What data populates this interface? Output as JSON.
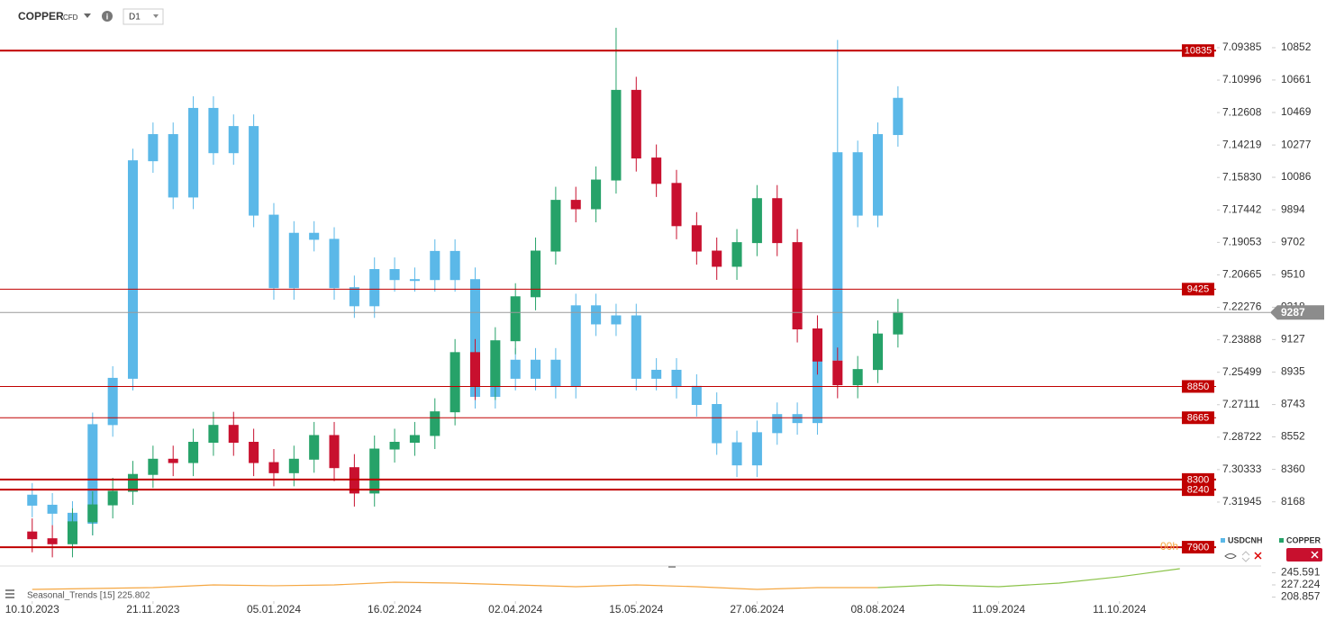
{
  "header": {
    "symbol": "COPPER",
    "instrument": "CFD",
    "timeframe": "D1"
  },
  "chart_data": {
    "type": "candlestick",
    "x": [
      0,
      5,
      10,
      15,
      20,
      25,
      30,
      35,
      40,
      45,
      50,
      55,
      60,
      65,
      70,
      75,
      80,
      85,
      90,
      95,
      100,
      105,
      110,
      115,
      120,
      125,
      130,
      135,
      140,
      145,
      150,
      155,
      160,
      165,
      170,
      175,
      180,
      185,
      190,
      195,
      200,
      205,
      210,
      215
    ],
    "xlim": [
      -8,
      294
    ],
    "xticks": [
      {
        "value": 0,
        "label": "10.10.2023"
      },
      {
        "value": 30,
        "label": "21.11.2023"
      },
      {
        "value": 60,
        "label": "05.01.2024"
      },
      {
        "value": 90,
        "label": "16.02.2024"
      },
      {
        "value": 120,
        "label": "02.04.2024"
      },
      {
        "value": 150,
        "label": "15.05.2024"
      },
      {
        "value": 180,
        "label": "27.06.2024"
      },
      {
        "value": 210,
        "label": "08.08.2024"
      },
      {
        "value": 240,
        "label": "11.09.2024"
      },
      {
        "value": 270,
        "label": "11.10.2024"
      }
    ],
    "ylim": [
      7810,
      10985
    ],
    "yticks": [
      10852,
      10661,
      10469,
      10277,
      10086,
      9894,
      9702,
      9510,
      9318,
      9127,
      8935,
      8743,
      8552,
      8360,
      8168
    ],
    "y2lim": [
      7.0827,
      7.3494
    ],
    "y2_inverted": true,
    "y2ticks": [
      7.09385,
      7.10996,
      7.12608,
      7.14219,
      {
        "value": 7.1583,
        "label": "7.15830"
      },
      7.17442,
      7.19053,
      7.20665,
      7.22276,
      7.23888,
      7.25499,
      7.27111,
      7.28722,
      7.30333,
      7.31945
    ],
    "series": [
      {
        "name": "USDCNH",
        "axis": "y2",
        "color": "#5bb8e8",
        "open": [
          7.316,
          7.321,
          7.325,
          7.33,
          7.281,
          7.258,
          7.15,
          7.137,
          7.168,
          7.124,
          7.146,
          7.133,
          7.177,
          7.213,
          7.186,
          7.189,
          7.213,
          7.222,
          7.204,
          7.209,
          7.209,
          7.195,
          7.209,
          7.267,
          7.249,
          7.258,
          7.249,
          7.262,
          7.222,
          7.231,
          7.227,
          7.258,
          7.254,
          7.262,
          7.271,
          7.29,
          7.301,
          7.285,
          7.276,
          7.28,
          7.249,
          7.146,
          7.177,
          7.137
        ],
        "high": [
          7.327,
          7.331,
          7.336,
          7.336,
          7.287,
          7.264,
          7.156,
          7.174,
          7.174,
          7.152,
          7.152,
          7.183,
          7.219,
          7.219,
          7.195,
          7.219,
          7.228,
          7.228,
          7.215,
          7.215,
          7.215,
          7.215,
          7.273,
          7.273,
          7.264,
          7.264,
          7.268,
          7.268,
          7.237,
          7.237,
          7.264,
          7.264,
          7.268,
          7.277,
          7.296,
          7.307,
          7.307,
          7.291,
          7.286,
          7.286,
          7.255,
          7.183,
          7.183,
          7.143
        ],
        "low": [
          7.31,
          7.315,
          7.319,
          7.275,
          7.252,
          7.144,
          7.131,
          7.131,
          7.118,
          7.118,
          7.127,
          7.127,
          7.171,
          7.18,
          7.18,
          7.183,
          7.207,
          7.198,
          7.198,
          7.203,
          7.189,
          7.189,
          7.203,
          7.243,
          7.243,
          7.243,
          7.243,
          7.216,
          7.216,
          7.221,
          7.221,
          7.248,
          7.248,
          7.256,
          7.265,
          7.284,
          7.279,
          7.27,
          7.27,
          7.243,
          7.09,
          7.14,
          7.131,
          7.113
        ],
        "close": [
          7.321,
          7.325,
          7.33,
          7.281,
          7.258,
          7.15,
          7.137,
          7.168,
          7.124,
          7.146,
          7.133,
          7.177,
          7.213,
          7.186,
          7.189,
          7.213,
          7.222,
          7.204,
          7.209,
          7.209,
          7.195,
          7.209,
          7.267,
          7.249,
          7.258,
          7.249,
          7.262,
          7.222,
          7.231,
          7.227,
          7.258,
          7.254,
          7.262,
          7.271,
          7.29,
          7.301,
          7.285,
          7.276,
          7.28,
          7.249,
          7.146,
          7.177,
          7.137,
          7.119
        ]
      },
      {
        "name": "COPPER",
        "color": "#26a269",
        "down_color": "#c8102e",
        "open": [
          7990,
          7950,
          7920,
          8050,
          8150,
          8230,
          8330,
          8420,
          8400,
          8520,
          8620,
          8520,
          8400,
          8340,
          8420,
          8560,
          8370,
          8220,
          8480,
          8520,
          8560,
          8700,
          9050,
          8850,
          9120,
          9380,
          9650,
          9950,
          9900,
          10070,
          10600,
          10200,
          10050,
          9800,
          9650,
          9560,
          9700,
          9960,
          9700,
          9190,
          9000,
          8860,
          8950,
          9160
        ],
        "high": [
          8070,
          8030,
          8130,
          8230,
          8310,
          8410,
          8500,
          8500,
          8600,
          8700,
          8700,
          8600,
          8480,
          8500,
          8640,
          8640,
          8450,
          8560,
          8600,
          8640,
          8780,
          9130,
          9130,
          9200,
          9460,
          9730,
          10030,
          10030,
          10150,
          10970,
          10680,
          10280,
          10130,
          9880,
          9730,
          9780,
          10040,
          10040,
          9780,
          9270,
          9080,
          9030,
          9240,
          9367
        ],
        "low": [
          7870,
          7840,
          7840,
          7970,
          8070,
          8150,
          8250,
          8320,
          8320,
          8440,
          8440,
          8320,
          8260,
          8260,
          8340,
          8290,
          8140,
          8140,
          8400,
          8440,
          8480,
          8620,
          8770,
          8770,
          9040,
          9300,
          9570,
          9820,
          9820,
          9990,
          10120,
          9970,
          9720,
          9570,
          9480,
          9480,
          9620,
          9620,
          9110,
          8920,
          8780,
          8780,
          8870,
          9080
        ],
        "close": [
          7950,
          7920,
          8050,
          8150,
          8230,
          8330,
          8420,
          8400,
          8520,
          8620,
          8520,
          8400,
          8340,
          8420,
          8560,
          8370,
          8220,
          8480,
          8520,
          8560,
          8700,
          9050,
          8850,
          9120,
          9380,
          9650,
          9950,
          9900,
          10070,
          10600,
          10200,
          10050,
          9800,
          9650,
          9560,
          9700,
          9960,
          9700,
          9190,
          9000,
          8860,
          8950,
          9160,
          9287
        ]
      }
    ],
    "levels": [
      {
        "value": 10835,
        "width": 2
      },
      {
        "value": 9425,
        "width": 1
      },
      {
        "value": 8850,
        "width": 1
      },
      {
        "value": 8665,
        "width": 1
      },
      {
        "value": 8300,
        "width": 2
      },
      {
        "value": 8240,
        "width": 2
      },
      {
        "value": 7900,
        "width": 2
      }
    ],
    "level_color": "#c00000",
    "current_price": 9287,
    "countdown": "00h",
    "indicator": {
      "label": "Seasonal_Trends [15]  225.802",
      "x": [
        0,
        15,
        30,
        45,
        60,
        75,
        90,
        105,
        120,
        135,
        150,
        165,
        180,
        195,
        210,
        225,
        240,
        255,
        270,
        285
      ],
      "ylim": [
        186.4,
        254.4
      ],
      "yticks": [
        245.591,
        227.224,
        208.857
      ],
      "series": [
        {
          "color": "#f5a742",
          "values": [
            220.4,
            221.8,
            223.1,
            227.2,
            225.9,
            227.2,
            231.3,
            229.9,
            227.2,
            224.5,
            227.2,
            224.5,
            220.4,
            223.1,
            223.1,
            null,
            null,
            null,
            null,
            null
          ]
        },
        {
          "color": "#8bc34a",
          "values": [
            null,
            null,
            null,
            null,
            null,
            null,
            null,
            null,
            null,
            null,
            null,
            null,
            null,
            null,
            223.1,
            227.2,
            224.5,
            229.9,
            239.5,
            251.7
          ]
        }
      ]
    }
  }
}
